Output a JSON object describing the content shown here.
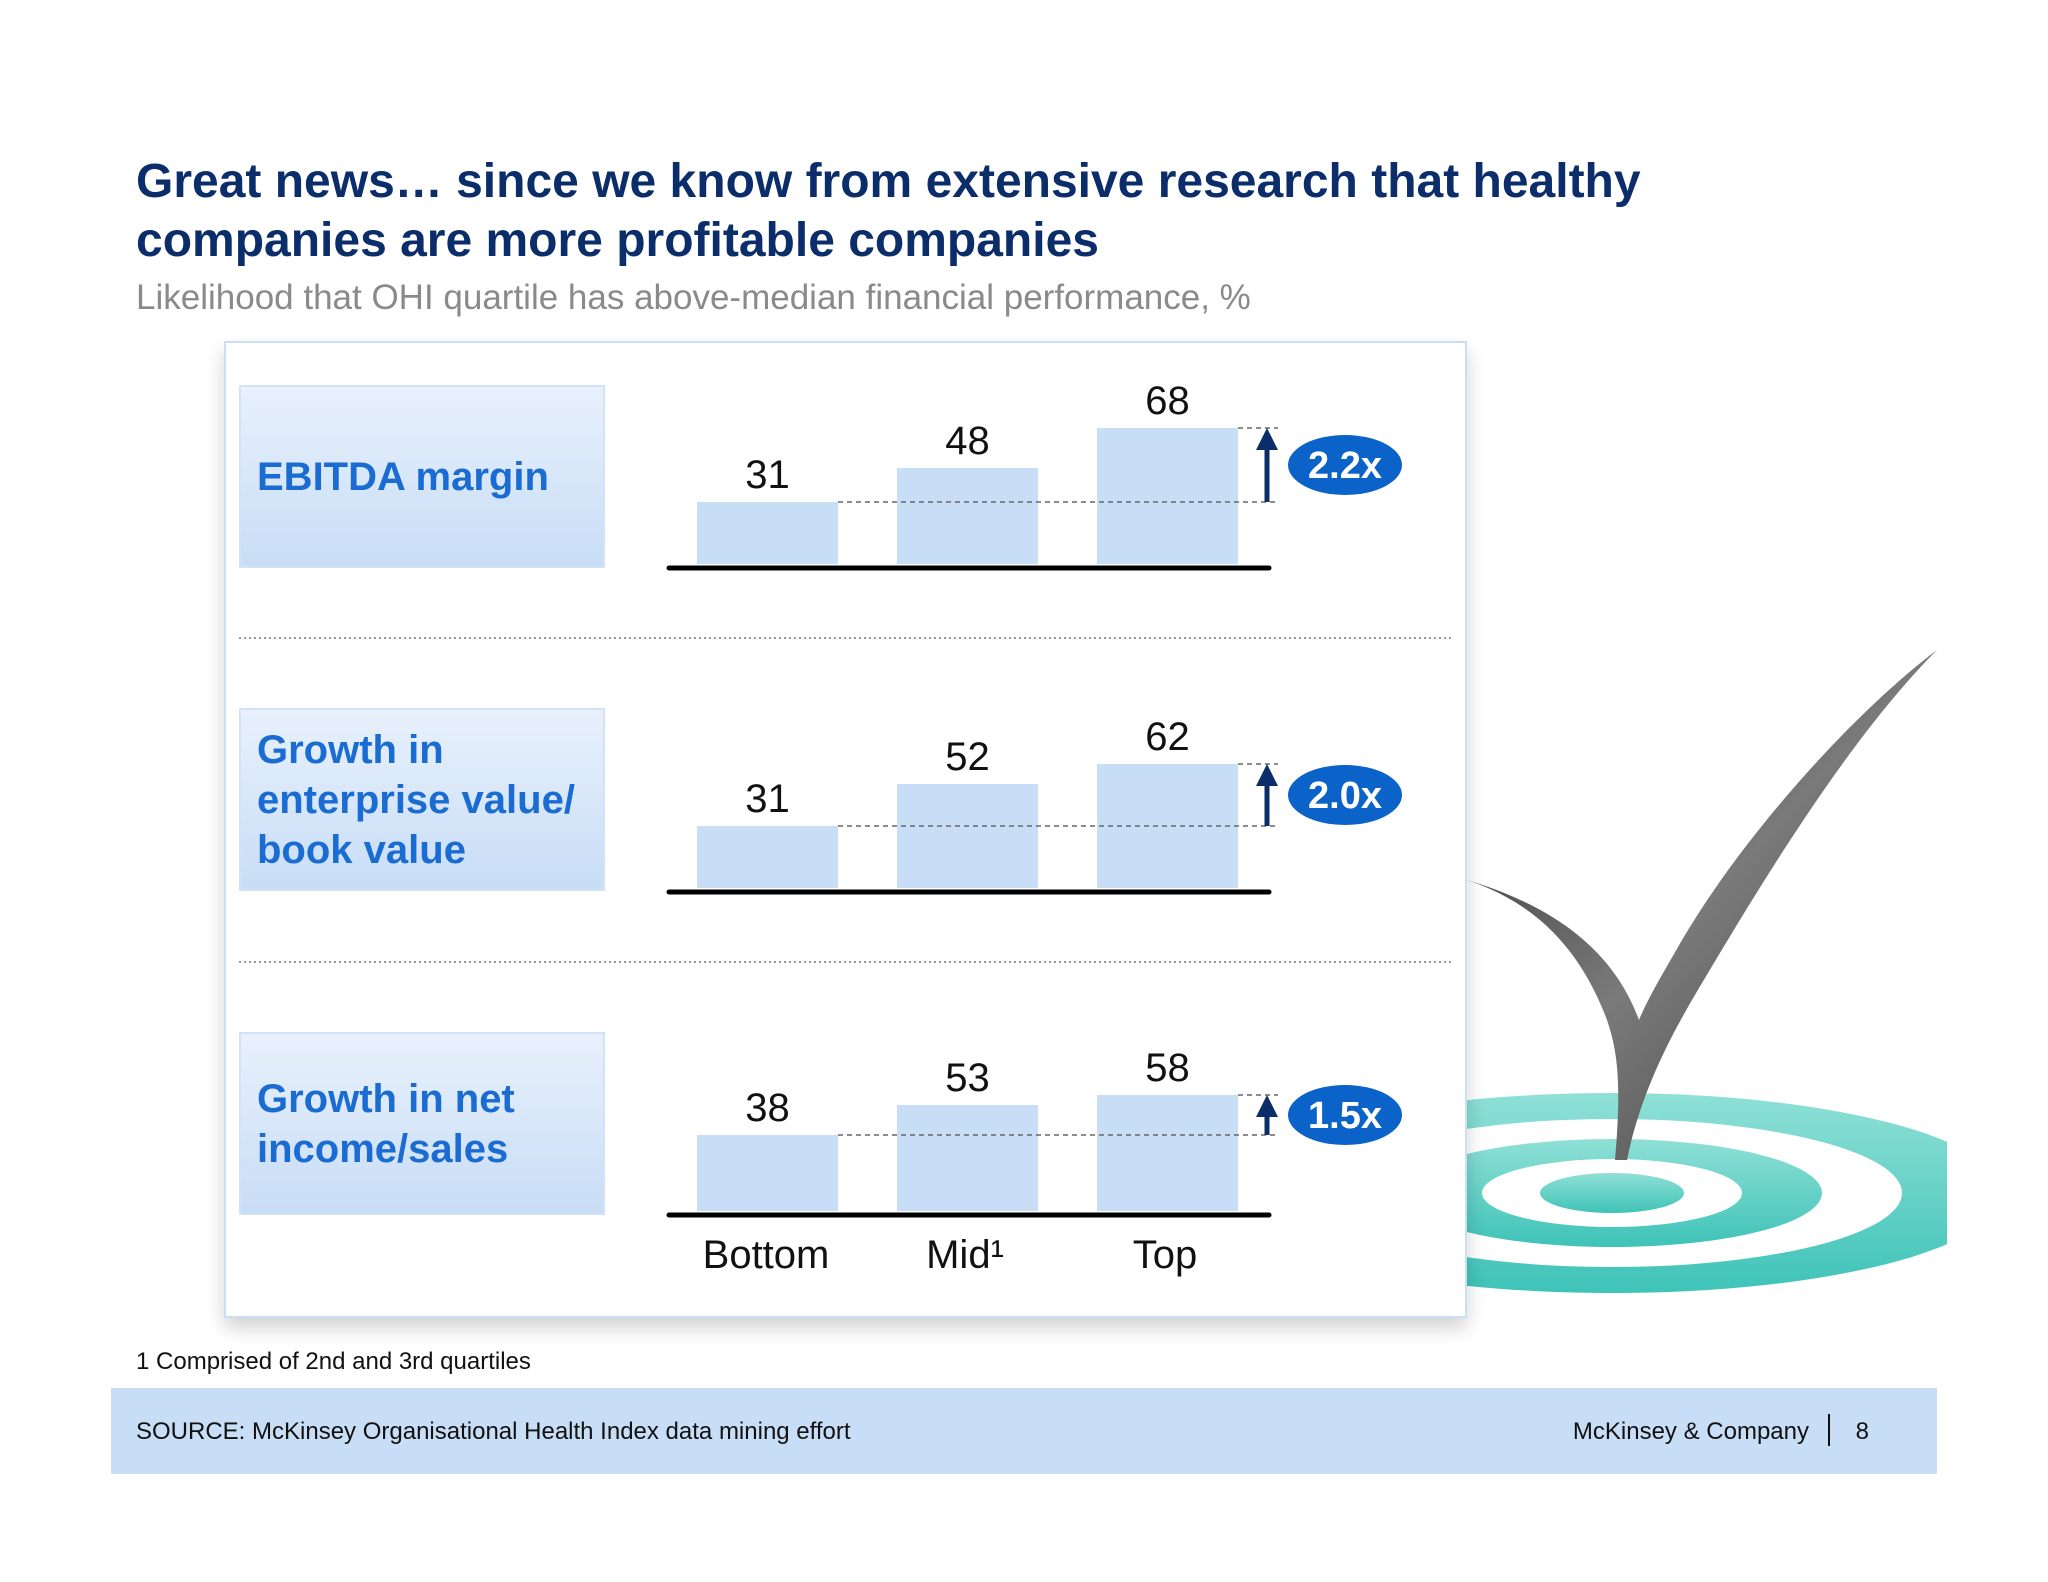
{
  "header": {
    "title": "Great news… since we know from extensive research that healthy companies are more profitable companies",
    "subtitle": "Likelihood that OHI quartile has above-median financial performance, %"
  },
  "chart_data": {
    "type": "bar",
    "categories": [
      "Bottom",
      "Mid¹",
      "Top"
    ],
    "panels": [
      {
        "label": "EBITDA margin",
        "values": [
          31,
          48,
          68
        ],
        "multiplier": "2.2x"
      },
      {
        "label": "Growth in enterprise value/ book value",
        "values": [
          31,
          52,
          62
        ],
        "multiplier": "2.0x"
      },
      {
        "label": "Growth in net income/sales",
        "values": [
          38,
          53,
          58
        ],
        "multiplier": "1.5x"
      }
    ],
    "bar_color": "#c8ddf6",
    "badge_color": "#0b63c9"
  },
  "footnote": "1 Comprised of 2nd and 3rd quartiles",
  "footer": {
    "source": "SOURCE: McKinsey Organisational Health Index data mining effort",
    "brand": "McKinsey & Company",
    "page": "8"
  },
  "decoration": {
    "icon": "checkmark-target-icon"
  }
}
